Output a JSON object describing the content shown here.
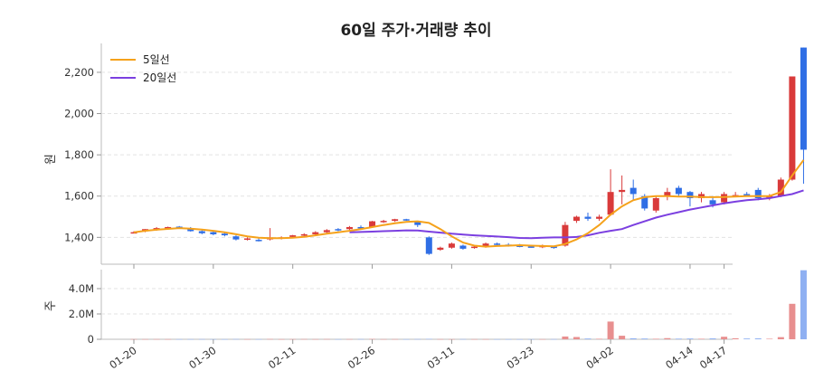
{
  "chart_data": {
    "type": "candlestick",
    "title": "60일 주가·거래량 추이",
    "price_ylabel": "원",
    "volume_ylabel": "주",
    "price_ylim": [
      1270,
      2340
    ],
    "price_ticks": [
      1400,
      1600,
      1800,
      2000,
      2200
    ],
    "price_tick_labels": [
      "1,400",
      "1,600",
      "1,800",
      "2,000",
      "2,200"
    ],
    "volume_ylim": [
      0,
      5500000
    ],
    "volume_ticks": [
      0,
      2000000,
      4000000
    ],
    "volume_tick_labels": [
      "0",
      "2.0M",
      "4.0M"
    ],
    "x_ticks": [
      {
        "index": 0,
        "label": "01-20"
      },
      {
        "index": 7,
        "label": "01-30"
      },
      {
        "index": 14,
        "label": "02-11"
      },
      {
        "index": 21,
        "label": "02-26"
      },
      {
        "index": 28,
        "label": "03-11"
      },
      {
        "index": 35,
        "label": "03-23"
      },
      {
        "index": 42,
        "label": "04-02"
      },
      {
        "index": 49,
        "label": "04-14"
      },
      {
        "index": 52,
        "label": "04-17"
      }
    ],
    "legend": {
      "position": "top-left",
      "entries": [
        {
          "name": "5일선",
          "color": "#f5a21b"
        },
        {
          "name": "20일선",
          "color": "#7b3fe0"
        }
      ]
    },
    "colors": {
      "up": "#d93a3a",
      "down": "#2f6ee5",
      "ma5": "#f5a21b",
      "ma20": "#7b3fe0",
      "vol_up": "#e88f8f",
      "vol_down": "#8fb0f2"
    },
    "grid": true,
    "ohlc": [
      [
        1425,
        1430,
        1420,
        1425
      ],
      [
        1430,
        1440,
        1425,
        1440
      ],
      [
        1440,
        1450,
        1432,
        1445
      ],
      [
        1445,
        1452,
        1440,
        1450
      ],
      [
        1452,
        1455,
        1445,
        1448
      ],
      [
        1445,
        1450,
        1428,
        1430
      ],
      [
        1430,
        1438,
        1415,
        1420
      ],
      [
        1425,
        1432,
        1410,
        1415
      ],
      [
        1418,
        1425,
        1405,
        1410
      ],
      [
        1405,
        1410,
        1385,
        1390
      ],
      [
        1395,
        1400,
        1385,
        1395
      ],
      [
        1388,
        1398,
        1380,
        1385
      ],
      [
        1390,
        1445,
        1385,
        1400
      ],
      [
        1395,
        1405,
        1390,
        1400
      ],
      [
        1402,
        1412,
        1398,
        1410
      ],
      [
        1410,
        1420,
        1405,
        1415
      ],
      [
        1415,
        1430,
        1412,
        1425
      ],
      [
        1425,
        1440,
        1418,
        1435
      ],
      [
        1440,
        1445,
        1430,
        1435
      ],
      [
        1440,
        1455,
        1435,
        1450
      ],
      [
        1450,
        1458,
        1440,
        1445
      ],
      [
        1450,
        1480,
        1448,
        1478
      ],
      [
        1478,
        1485,
        1470,
        1480
      ],
      [
        1480,
        1490,
        1475,
        1488
      ],
      [
        1488,
        1490,
        1480,
        1485
      ],
      [
        1475,
        1480,
        1450,
        1460
      ],
      [
        1400,
        1405,
        1315,
        1320
      ],
      [
        1340,
        1355,
        1335,
        1350
      ],
      [
        1350,
        1375,
        1345,
        1370
      ],
      [
        1360,
        1365,
        1340,
        1345
      ],
      [
        1350,
        1360,
        1345,
        1355
      ],
      [
        1355,
        1375,
        1350,
        1370
      ],
      [
        1370,
        1375,
        1360,
        1365
      ],
      [
        1365,
        1372,
        1355,
        1360
      ],
      [
        1360,
        1368,
        1352,
        1356
      ],
      [
        1356,
        1362,
        1350,
        1352
      ],
      [
        1352,
        1365,
        1348,
        1360
      ],
      [
        1355,
        1360,
        1345,
        1350
      ],
      [
        1360,
        1475,
        1355,
        1460
      ],
      [
        1480,
        1505,
        1470,
        1500
      ],
      [
        1500,
        1520,
        1480,
        1490
      ],
      [
        1490,
        1510,
        1480,
        1500
      ],
      [
        1510,
        1730,
        1505,
        1620
      ],
      [
        1620,
        1700,
        1560,
        1630
      ],
      [
        1640,
        1680,
        1580,
        1610
      ],
      [
        1600,
        1610,
        1530,
        1540
      ],
      [
        1530,
        1600,
        1520,
        1590
      ],
      [
        1600,
        1640,
        1580,
        1620
      ],
      [
        1640,
        1650,
        1600,
        1610
      ],
      [
        1620,
        1625,
        1550,
        1590
      ],
      [
        1590,
        1620,
        1570,
        1610
      ],
      [
        1580,
        1600,
        1545,
        1560
      ],
      [
        1570,
        1620,
        1560,
        1610
      ],
      [
        1600,
        1620,
        1595,
        1605
      ],
      [
        1610,
        1620,
        1600,
        1605
      ],
      [
        1630,
        1640,
        1580,
        1590
      ],
      [
        1590,
        1610,
        1580,
        1600
      ],
      [
        1600,
        1690,
        1595,
        1680
      ],
      [
        1680,
        2180,
        1675,
        2180
      ],
      [
        2320,
        2320,
        1660,
        1825
      ]
    ],
    "volume": [
      15000,
      12000,
      14000,
      10000,
      11000,
      12000,
      15000,
      10000,
      9000,
      20000,
      12000,
      11000,
      22000,
      10000,
      14000,
      16000,
      12000,
      18000,
      10000,
      15000,
      16000,
      25000,
      12000,
      14000,
      10000,
      18000,
      30000,
      15000,
      12000,
      16000,
      11000,
      12000,
      10000,
      9000,
      8000,
      10000,
      12000,
      14000,
      220000,
      180000,
      60000,
      40000,
      1400000,
      280000,
      80000,
      60000,
      40000,
      90000,
      50000,
      60000,
      40000,
      70000,
      200000,
      80000,
      60000,
      70000,
      40000,
      170000,
      2800000,
      5450000
    ],
    "ma5": [
      1425,
      1432,
      1437,
      1441,
      1445,
      1442,
      1438,
      1432,
      1425,
      1415,
      1405,
      1398,
      1396,
      1396,
      1398,
      1403,
      1410,
      1418,
      1425,
      1432,
      1440,
      1450,
      1460,
      1468,
      1475,
      1478,
      1470,
      1440,
      1405,
      1375,
      1360,
      1355,
      1358,
      1360,
      1362,
      1360,
      1358,
      1357,
      1368,
      1390,
      1420,
      1460,
      1510,
      1550,
      1580,
      1595,
      1600,
      1600,
      1598,
      1598,
      1595,
      1595,
      1596,
      1598,
      1600,
      1600,
      1600,
      1620,
      1700,
      1775
    ],
    "ma20": [
      null,
      null,
      null,
      null,
      null,
      null,
      null,
      null,
      null,
      null,
      null,
      null,
      null,
      null,
      null,
      null,
      null,
      null,
      null,
      1425,
      1426,
      1428,
      1430,
      1432,
      1434,
      1433,
      1428,
      1423,
      1418,
      1414,
      1410,
      1407,
      1404,
      1401,
      1397,
      1396,
      1398,
      1400,
      1400,
      1402,
      1410,
      1422,
      1432,
      1440,
      1460,
      1478,
      1496,
      1510,
      1522,
      1535,
      1545,
      1555,
      1565,
      1573,
      1580,
      1585,
      1590,
      1600,
      1610,
      1628
    ]
  }
}
